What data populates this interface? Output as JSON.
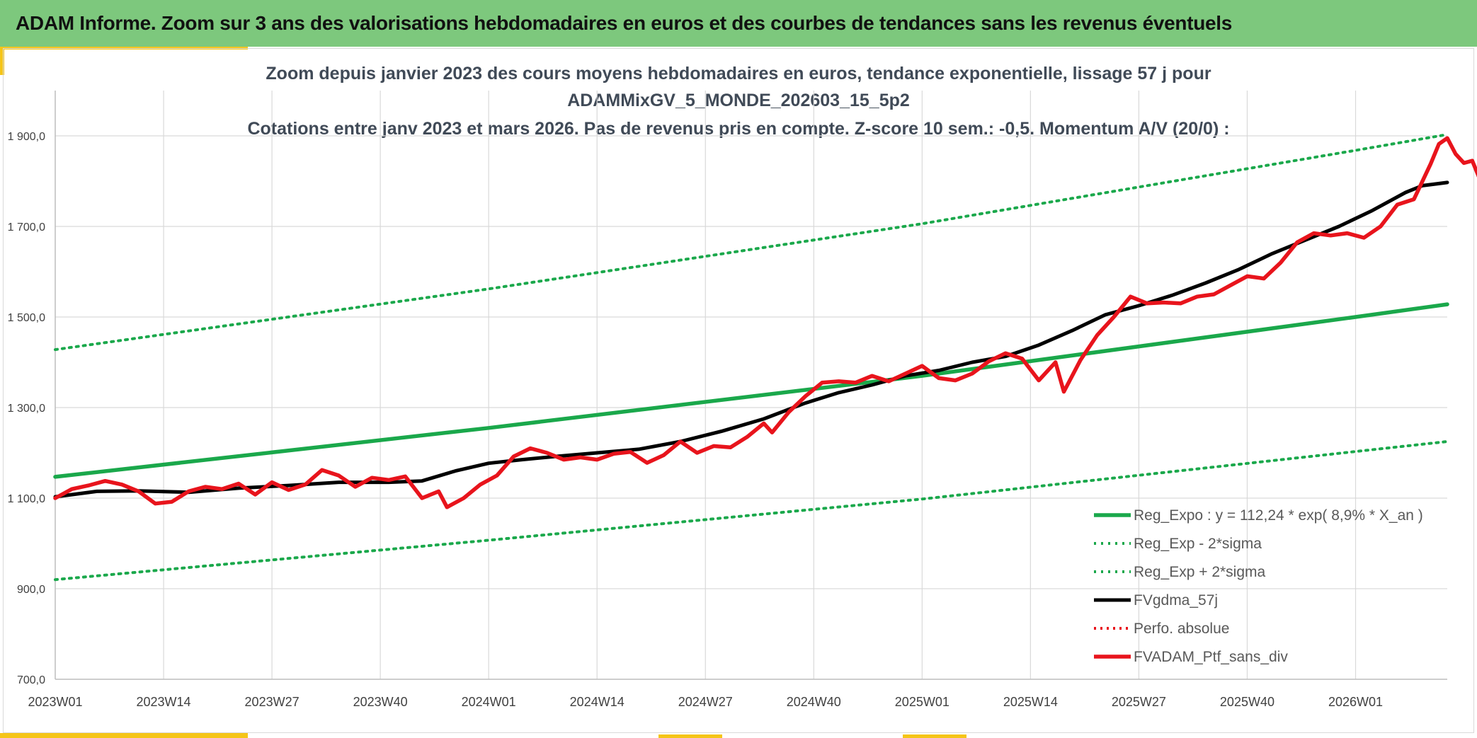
{
  "header": {
    "title": "ADAM Informe. Zoom sur 3 ans des valorisations hebdomadaires en euros et des courbes de tendances sans les revenus éventuels"
  },
  "colors": {
    "banner": "#7dc87d",
    "accent": "#f5c518",
    "reg_expo": "#1aa84b",
    "sigma": "#1aa84b",
    "fvgdma": "#000000",
    "perfo": "#e8141c",
    "ptf": "#e8141c",
    "grid": "#d9d9d9"
  },
  "chart_data": {
    "type": "line",
    "title_lines": [
      "Zoom depuis janvier 2023 des cours moyens hebdomadaires en euros, tendance exponentielle, lissage 57 j pour",
      "ADAMMixGV_5_MONDE_202603_15_5p2",
      "Cotations entre janv 2023 et mars 2026. Pas de revenus pris en compte. Z-score 10 sem.: -0,5. Momentum A/V (20/0) :"
    ],
    "xlabel": "",
    "ylabel": "",
    "ylim": [
      700,
      2000
    ],
    "y_ticks": [
      700,
      900,
      1100,
      1300,
      1500,
      1700,
      1900
    ],
    "y_tick_labels": [
      "700,0",
      "900,0",
      "1 100,0",
      "1 300,0",
      "1 500,0",
      "1 700,0",
      "1 900,0"
    ],
    "x_tick_labels": [
      "2023W01",
      "2023W14",
      "2023W27",
      "2023W40",
      "2024W01",
      "2024W14",
      "2024W27",
      "2024W40",
      "2025W01",
      "2025W14",
      "2025W27",
      "2025W40",
      "2026W01"
    ],
    "x_week_range": [
      0,
      167
    ],
    "grid": true,
    "legend_position": "bottom-right",
    "series": [
      {
        "name": "Reg_Expo : y = 112,24 * exp( 8,9% *  X_an )",
        "style": "solid",
        "points": [
          [
            0,
            1147
          ],
          [
            52,
            1255
          ],
          [
            104,
            1370
          ],
          [
            156,
            1500
          ],
          [
            167,
            1528
          ]
        ]
      },
      {
        "name": "Reg_Exp - 2*sigma",
        "style": "dotted",
        "points": [
          [
            0,
            920
          ],
          [
            52,
            1007
          ],
          [
            104,
            1098
          ],
          [
            156,
            1203
          ],
          [
            167,
            1225
          ]
        ]
      },
      {
        "name": "Reg_Exp + 2*sigma",
        "style": "dotted",
        "points": [
          [
            0,
            1428
          ],
          [
            52,
            1562
          ],
          [
            104,
            1706
          ],
          [
            156,
            1868
          ],
          [
            167,
            1903
          ]
        ]
      },
      {
        "name": "FVgdma_57j",
        "style": "solid",
        "points": [
          [
            0,
            1103
          ],
          [
            5,
            1115
          ],
          [
            10,
            1116
          ],
          [
            16,
            1113
          ],
          [
            22,
            1122
          ],
          [
            28,
            1128
          ],
          [
            34,
            1135
          ],
          [
            40,
            1135
          ],
          [
            44,
            1138
          ],
          [
            48,
            1160
          ],
          [
            52,
            1177
          ],
          [
            56,
            1185
          ],
          [
            60,
            1192
          ],
          [
            65,
            1200
          ],
          [
            70,
            1208
          ],
          [
            75,
            1225
          ],
          [
            80,
            1248
          ],
          [
            85,
            1275
          ],
          [
            90,
            1310
          ],
          [
            94,
            1333
          ],
          [
            98,
            1350
          ],
          [
            102,
            1370
          ],
          [
            106,
            1382
          ],
          [
            110,
            1400
          ],
          [
            114,
            1413
          ],
          [
            118,
            1438
          ],
          [
            122,
            1470
          ],
          [
            126,
            1505
          ],
          [
            130,
            1525
          ],
          [
            134,
            1548
          ],
          [
            138,
            1575
          ],
          [
            142,
            1605
          ],
          [
            146,
            1640
          ],
          [
            150,
            1670
          ],
          [
            154,
            1700
          ],
          [
            158,
            1735
          ],
          [
            162,
            1775
          ],
          [
            164,
            1790
          ],
          [
            167,
            1797
          ]
        ]
      },
      {
        "name": "Perfo. absolue",
        "style": "dotted",
        "points": []
      },
      {
        "name": "FVADAM_Ptf_sans_div",
        "style": "solid",
        "points": [
          [
            0,
            1100
          ],
          [
            2,
            1120
          ],
          [
            4,
            1128
          ],
          [
            6,
            1138
          ],
          [
            8,
            1130
          ],
          [
            10,
            1115
          ],
          [
            12,
            1088
          ],
          [
            14,
            1092
          ],
          [
            16,
            1115
          ],
          [
            18,
            1125
          ],
          [
            20,
            1120
          ],
          [
            22,
            1132
          ],
          [
            24,
            1108
          ],
          [
            26,
            1135
          ],
          [
            28,
            1118
          ],
          [
            30,
            1130
          ],
          [
            32,
            1162
          ],
          [
            34,
            1150
          ],
          [
            36,
            1125
          ],
          [
            38,
            1145
          ],
          [
            40,
            1140
          ],
          [
            42,
            1148
          ],
          [
            44,
            1100
          ],
          [
            46,
            1115
          ],
          [
            47,
            1080
          ],
          [
            49,
            1100
          ],
          [
            51,
            1130
          ],
          [
            53,
            1150
          ],
          [
            55,
            1192
          ],
          [
            57,
            1210
          ],
          [
            59,
            1200
          ],
          [
            61,
            1185
          ],
          [
            63,
            1190
          ],
          [
            65,
            1185
          ],
          [
            67,
            1198
          ],
          [
            69,
            1202
          ],
          [
            71,
            1178
          ],
          [
            73,
            1195
          ],
          [
            75,
            1225
          ],
          [
            77,
            1200
          ],
          [
            79,
            1215
          ],
          [
            81,
            1212
          ],
          [
            83,
            1235
          ],
          [
            85,
            1265
          ],
          [
            86,
            1245
          ],
          [
            88,
            1290
          ],
          [
            90,
            1325
          ],
          [
            92,
            1355
          ],
          [
            94,
            1358
          ],
          [
            96,
            1355
          ],
          [
            98,
            1370
          ],
          [
            100,
            1358
          ],
          [
            102,
            1375
          ],
          [
            104,
            1392
          ],
          [
            106,
            1365
          ],
          [
            108,
            1360
          ],
          [
            110,
            1375
          ],
          [
            112,
            1402
          ],
          [
            114,
            1420
          ],
          [
            116,
            1408
          ],
          [
            118,
            1360
          ],
          [
            120,
            1400
          ],
          [
            121,
            1335
          ],
          [
            123,
            1405
          ],
          [
            125,
            1460
          ],
          [
            127,
            1500
          ],
          [
            129,
            1545
          ],
          [
            131,
            1530
          ],
          [
            133,
            1532
          ],
          [
            135,
            1530
          ],
          [
            137,
            1545
          ],
          [
            139,
            1550
          ],
          [
            141,
            1570
          ],
          [
            143,
            1590
          ],
          [
            145,
            1585
          ],
          [
            147,
            1620
          ],
          [
            149,
            1665
          ],
          [
            151,
            1685
          ],
          [
            153,
            1680
          ],
          [
            155,
            1685
          ],
          [
            157,
            1675
          ],
          [
            159,
            1700
          ],
          [
            161,
            1748
          ],
          [
            163,
            1760
          ],
          [
            165,
            1838
          ],
          [
            166,
            1882
          ],
          [
            167,
            1895
          ],
          [
            168,
            1860
          ],
          [
            169,
            1840
          ],
          [
            170,
            1845
          ],
          [
            171,
            1800
          ]
        ]
      }
    ]
  }
}
